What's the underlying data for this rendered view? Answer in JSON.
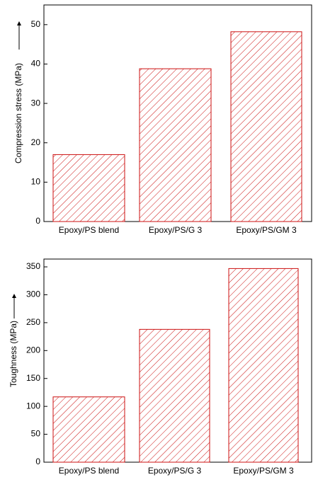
{
  "chart_data": [
    {
      "type": "bar",
      "y_label": "Compression stress (MPa)",
      "categories": [
        "Epoxy/PS blend",
        "Epoxy/PS/G 3",
        "Epoxy/PS/GM 3"
      ],
      "values": [
        17,
        38.8,
        48.2
      ],
      "color": "#cc1111",
      "ylim": [
        0,
        55
      ],
      "yticks": [
        0,
        10,
        20,
        30,
        40,
        50
      ]
    },
    {
      "type": "bar",
      "y_label": "Toughness (MPa)",
      "categories": [
        "Epoxy/PS blend",
        "Epoxy/PS/G 3",
        "Epoxy/PS/GM 3"
      ],
      "values": [
        117,
        238,
        347
      ],
      "color": "#cc1111",
      "ylim": [
        0,
        364
      ],
      "yticks": [
        0,
        50,
        100,
        150,
        200,
        250,
        300,
        350
      ]
    }
  ]
}
